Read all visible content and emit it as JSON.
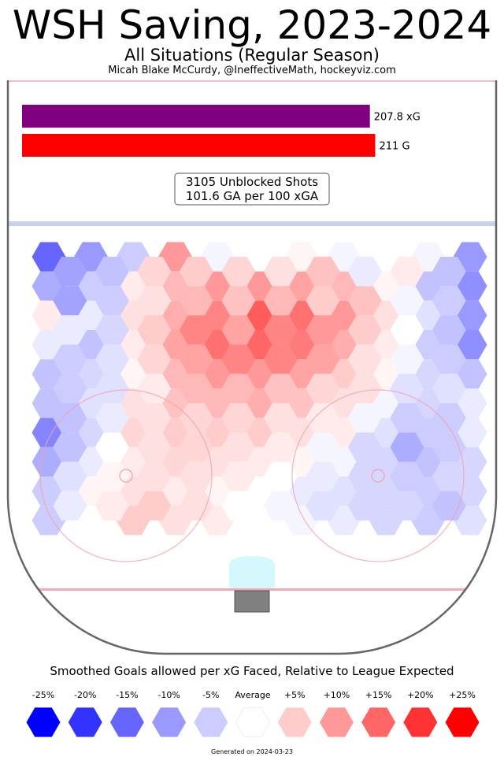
{
  "header": {
    "title": "WSH Saving, 2023-2024",
    "subtitle": "All Situations (Regular Season)",
    "credit": "Micah Blake McCurdy, @IneffectiveMath, hockeyviz.com"
  },
  "chart_data": {
    "type": "heatmap",
    "bars": [
      {
        "label": "207.8 xG",
        "value": 207.8,
        "color": "#800080"
      },
      {
        "label": "211 G",
        "value": 211,
        "color": "#ff0000"
      }
    ],
    "bar_axis_max": 215,
    "summary_lines": [
      "3105 Unblocked Shots",
      "101.6 GA per 100 xGA"
    ],
    "legend_title": "Smoothed Goals allowed per xG Faced, Relative to League Expected",
    "legend": [
      {
        "label": "-25%",
        "value": -25,
        "color": "#0000ff"
      },
      {
        "label": "-20%",
        "value": -20,
        "color": "#3333ff"
      },
      {
        "label": "-15%",
        "value": -15,
        "color": "#6666ff"
      },
      {
        "label": "-10%",
        "value": -10,
        "color": "#9999ff"
      },
      {
        "label": "-5%",
        "value": -5,
        "color": "#ccccff"
      },
      {
        "label": "Average",
        "value": 0,
        "color": "#ffffff"
      },
      {
        "label": "+5%",
        "value": 5,
        "color": "#ffcccc"
      },
      {
        "label": "+10%",
        "value": 10,
        "color": "#ff9999"
      },
      {
        "label": "+15%",
        "value": 15,
        "color": "#ff6666"
      },
      {
        "label": "+20%",
        "value": 20,
        "color": "#ff3333"
      },
      {
        "label": "+25%",
        "value": 25,
        "color": "#ff0000"
      }
    ],
    "hex_grid": {
      "even_rows": [
        [
          -15,
          -10,
          -5,
          10,
          -1,
          0,
          1,
          -1,
          0,
          -1,
          -10
        ],
        [
          -8,
          -5,
          2,
          7,
          10,
          10,
          9,
          7,
          1,
          -6,
          -11
        ],
        [
          2,
          -2,
          3,
          8,
          12,
          16,
          14,
          10,
          3,
          -3,
          -10
        ],
        [
          -2,
          -6,
          2,
          9,
          14,
          15,
          13,
          8,
          2,
          -5,
          -11
        ],
        [
          -6,
          -4,
          1,
          7,
          10,
          10,
          9,
          5,
          1,
          -4,
          -6
        ],
        [
          -6,
          -3,
          3,
          6,
          7,
          8,
          6,
          3,
          -1,
          -4,
          -2
        ],
        [
          -12,
          -4,
          4,
          5,
          5,
          5,
          3,
          2,
          -3,
          -5,
          -2
        ],
        [
          -8,
          -2,
          2,
          4,
          3,
          2,
          1,
          -1,
          -4,
          -6,
          -4
        ],
        [
          -5,
          1,
          3,
          2,
          1,
          0,
          -2,
          -3,
          -4,
          -5,
          -4
        ],
        [
          -5,
          0,
          5,
          3,
          2,
          0,
          -1,
          -2,
          -4,
          -5,
          -3
        ]
      ],
      "odd_rows": [
        [
          -9,
          -6,
          4,
          5,
          4,
          3,
          6,
          -2,
          2,
          -6
        ],
        [
          -9,
          -5,
          3,
          7,
          6,
          7,
          5,
          6,
          -1,
          -5
        ],
        [
          -2,
          -4,
          5,
          12,
          9,
          12,
          10,
          5,
          0,
          -6
        ],
        [
          -5,
          -3,
          4,
          9,
          12,
          12,
          9,
          3,
          -1,
          -5
        ],
        [
          -5,
          -3,
          2,
          7,
          7,
          6,
          4,
          3,
          -3,
          -3
        ],
        [
          -6,
          -2,
          3,
          4,
          4,
          3,
          2,
          -1,
          -5,
          -5
        ],
        [
          -6,
          0,
          3,
          4,
          3,
          2,
          -1,
          -4,
          -8,
          -5
        ],
        [
          -3,
          1,
          3,
          3,
          2,
          0,
          -2,
          -4,
          -5,
          -4
        ],
        [
          -2,
          2,
          5,
          3,
          0,
          -1,
          -3,
          -4,
          -4,
          -6
        ]
      ]
    }
  },
  "footer": "Generated on 2024-03-23"
}
